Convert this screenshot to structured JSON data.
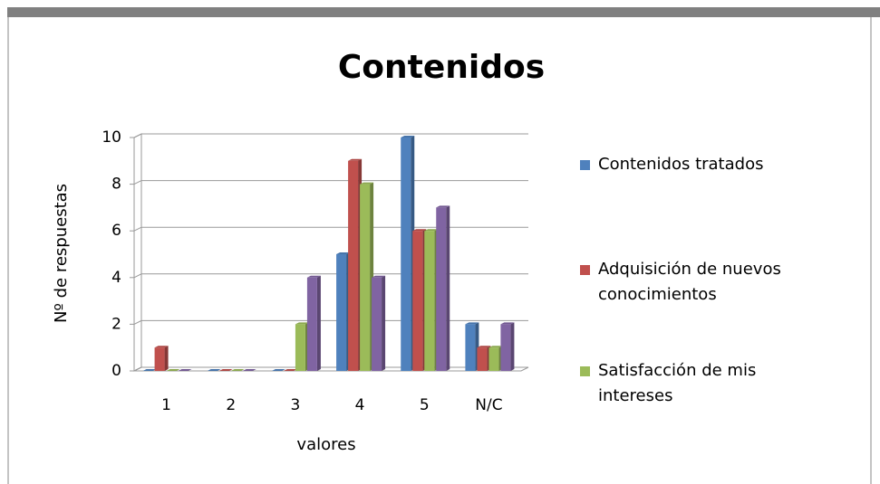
{
  "chart_data": {
    "type": "bar",
    "title": "Contenidos",
    "x_label": "valores",
    "y_label": "Nº de respuestas",
    "categories": [
      "1",
      "2",
      "3",
      "4",
      "5",
      "N/C"
    ],
    "series": [
      {
        "name": "Contenidos tratados",
        "color": "#4f81bd",
        "values": [
          0,
          0,
          0,
          5,
          10,
          2
        ]
      },
      {
        "name": "Adquisición de nuevos conocimientos",
        "color": "#c0504d",
        "values": [
          1,
          0,
          0,
          9,
          6,
          1
        ]
      },
      {
        "name": "Satisfacción de mis intereses",
        "color": "#9bbb59",
        "values": [
          0,
          0,
          2,
          8,
          6,
          1
        ]
      },
      {
        "color": "#8064a2",
        "values": [
          0,
          0,
          4,
          4,
          7,
          2
        ]
      }
    ],
    "ylim": [
      0,
      10
    ],
    "yticks": [
      0,
      2,
      4,
      6,
      8,
      10
    ],
    "grid": true
  }
}
